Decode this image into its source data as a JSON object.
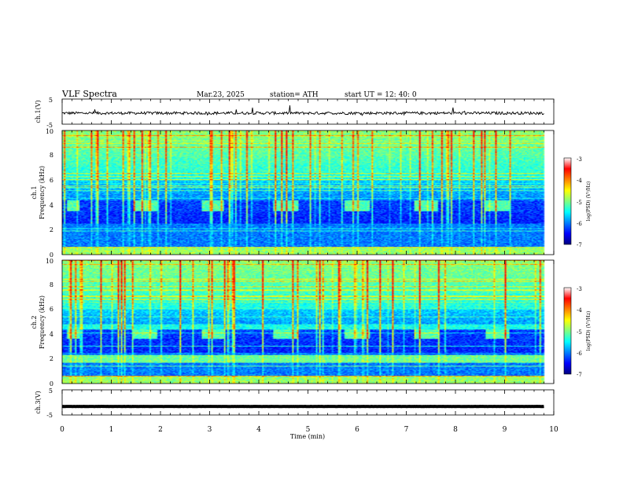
{
  "header": {
    "title": "VLF  Spectra",
    "date": "Mar.23, 2025",
    "station": "station= ATH",
    "start": "start  UT  =   12: 40: 0"
  },
  "chart_data": [
    {
      "type": "line",
      "panel": "ch1-waveform",
      "ylabel": "ch.1(V)",
      "ylim": [
        -5,
        5
      ],
      "yticks": [
        "5",
        "-5"
      ],
      "x_range": [
        0,
        9.8
      ],
      "baseline": -0.6,
      "line_color": "#000000"
    },
    {
      "type": "heatmap",
      "panel": "ch1-spectrogram",
      "ylabel": "ch.1",
      "ylabel2": "Frequency  (kHz)",
      "ylim": [
        0,
        10
      ],
      "yticks": [
        "0",
        "2",
        "4",
        "6",
        "8",
        "10"
      ],
      "x_range": [
        0,
        9.8
      ],
      "burst_segments_min": [
        [
          0.1,
          0.35
        ],
        [
          1.45,
          1.95
        ],
        [
          2.85,
          3.3
        ],
        [
          4.3,
          4.8
        ],
        [
          5.75,
          6.25
        ],
        [
          7.15,
          7.65
        ],
        [
          8.6,
          9.1
        ]
      ],
      "burst_freq_khz": [
        3.5,
        4.4
      ],
      "colorbar": {
        "label": "log(PSD) (V²/Hz)",
        "range": [
          -7,
          -3
        ],
        "ticks": [
          "-3",
          "-4",
          "-5",
          "-6",
          "-7"
        ]
      }
    },
    {
      "type": "heatmap",
      "panel": "ch2-spectrogram",
      "ylabel": "ch.2",
      "ylabel2": "Frequency  (kHz)",
      "ylim": [
        0,
        10
      ],
      "yticks": [
        "0",
        "2",
        "4",
        "6",
        "8",
        "10"
      ],
      "x_range": [
        0,
        9.8
      ],
      "burst_segments_min": [
        [
          0.1,
          0.35
        ],
        [
          1.45,
          1.95
        ],
        [
          2.85,
          3.3
        ],
        [
          4.3,
          4.8
        ],
        [
          5.75,
          6.25
        ],
        [
          7.15,
          7.65
        ],
        [
          8.6,
          9.1
        ]
      ],
      "burst_freq_khz": [
        3.6,
        4.4
      ],
      "colorbar": {
        "label": "log(PSD) (V²/Hz)",
        "range": [
          -7,
          -3
        ],
        "ticks": [
          "-3",
          "-4",
          "-5",
          "-6",
          "-7"
        ]
      }
    },
    {
      "type": "line",
      "panel": "ch3-waveform",
      "ylabel": "ch.3(V)",
      "ylim": [
        -5,
        5
      ],
      "yticks": [
        "5",
        "-5"
      ],
      "x_range": [
        0,
        9.8
      ],
      "baseline": -1.6,
      "line_color": "#000000"
    }
  ],
  "xaxis": {
    "label": "Time  (min)",
    "xlim": [
      0,
      10
    ],
    "ticks": [
      "0",
      "1",
      "2",
      "3",
      "4",
      "5",
      "6",
      "7",
      "8",
      "9",
      "10"
    ]
  },
  "colormap": [
    "#000080",
    "#0000ff",
    "#0080ff",
    "#00ffff",
    "#80ff80",
    "#ffff00",
    "#ff8000",
    "#ff0000",
    "#ffffff"
  ]
}
